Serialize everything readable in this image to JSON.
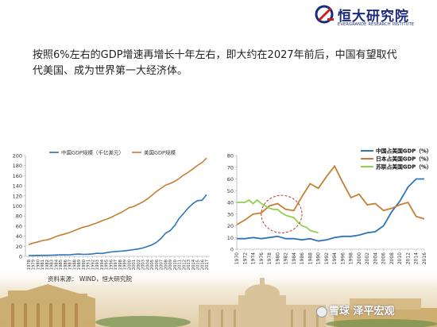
{
  "header": {
    "logo_name": "恒大研究院",
    "logo_subtitle": "EVERGRANDE RESEARCH INSTITUTE",
    "logo_color": "#1b2a7a",
    "logo_accent": "#c8201e"
  },
  "headline": "按照6%左右的GDP增速再增长十年左右，即大约在2027年前后，中国有望取代代美国、成为世界第一大经济体。",
  "footer": {
    "source": "资料来源：   WIND，恒大研究院",
    "watermark": "雪球 泽平宏观"
  },
  "chart_data": [
    {
      "type": "line",
      "xlabel": "",
      "ylabel": "",
      "ylim": [
        0,
        200
      ],
      "yticks": [
        0,
        20,
        40,
        60,
        80,
        100,
        120,
        140,
        160,
        180,
        200
      ],
      "x": [
        1978,
        1979,
        1980,
        1981,
        1982,
        1983,
        1984,
        1985,
        1986,
        1987,
        1988,
        1989,
        1990,
        1991,
        1992,
        1993,
        1994,
        1995,
        1996,
        1997,
        1998,
        1999,
        2000,
        2001,
        2002,
        2003,
        2004,
        2005,
        2006,
        2007,
        2008,
        2009,
        2010,
        2011,
        2012,
        2013,
        2014,
        2015,
        2016,
        2017
      ],
      "legend_position": "top",
      "grid": false,
      "series": [
        {
          "name": "中国GDP规模（千亿美元）",
          "color": "#2e75b6",
          "values": [
            1.5,
            1.8,
            1.9,
            2.0,
            2.0,
            2.3,
            2.6,
            3.1,
            3.0,
            3.2,
            4.1,
            4.6,
            4.0,
            4.2,
            4.9,
            6.1,
            5.6,
            7.3,
            8.6,
            9.6,
            10.3,
            10.9,
            12.1,
            13.4,
            14.7,
            16.6,
            19.6,
            22.9,
            27.5,
            35.5,
            45.9,
            51.0,
            60.9,
            75.5,
            85.7,
            96.1,
            104.8,
            110.6,
            111.4,
            122.4
          ]
        },
        {
          "name": "美国GDP规模",
          "color": "#c47f32",
          "values": [
            23.5,
            26.3,
            28.6,
            31.3,
            32.6,
            35.4,
            39.3,
            42.2,
            44.6,
            47.4,
            51.0,
            54.8,
            58.0,
            60.2,
            63.4,
            66.6,
            70.4,
            73.4,
            77.0,
            81.6,
            86.0,
            90.9,
            96.5,
            98.9,
            103.3,
            107.9,
            113.8,
            121.0,
            128.6,
            134.8,
            141.2,
            144.5,
            148.8,
            154.5,
            161.6,
            166.9,
            173.5,
            180.3,
            186.2,
            194.9
          ]
        }
      ]
    },
    {
      "type": "line",
      "xlabel": "",
      "ylabel": "",
      "ylim": [
        0,
        80
      ],
      "yticks": [
        0,
        10,
        20,
        30,
        40,
        50,
        60,
        70,
        80
      ],
      "xticks": [
        1970,
        1972,
        1974,
        1976,
        1978,
        1980,
        1982,
        1984,
        1986,
        1988,
        1990,
        1992,
        1994,
        1996,
        1998,
        2000,
        2002,
        2004,
        2006,
        2008,
        2010,
        2012,
        2014,
        2016
      ],
      "xlim": [
        1970,
        2016
      ],
      "legend_position": "top-right",
      "grid": false,
      "annotation": "dashed-ellipse",
      "series": [
        {
          "name": "中国占美国GDP（%）",
          "color": "#2e75b6",
          "x": [
            1970,
            1972,
            1974,
            1976,
            1978,
            1980,
            1982,
            1984,
            1986,
            1988,
            1990,
            1992,
            1994,
            1996,
            1998,
            2000,
            2002,
            2004,
            2006,
            2008,
            2010,
            2012,
            2014,
            2016
          ],
          "values": [
            9,
            9,
            10,
            9,
            10,
            11,
            9,
            9,
            8,
            9,
            7,
            8,
            10,
            11,
            11,
            12,
            14,
            15,
            20,
            32,
            41,
            53,
            60,
            60
          ]
        },
        {
          "name": "日本占美国GDP（%）",
          "color": "#c47f32",
          "x": [
            1970,
            1972,
            1974,
            1976,
            1978,
            1980,
            1982,
            1984,
            1986,
            1988,
            1990,
            1992,
            1994,
            1996,
            1998,
            2000,
            2002,
            2004,
            2006,
            2008,
            2010,
            2012,
            2014,
            2016
          ],
          "values": [
            21,
            25,
            30,
            31,
            37,
            39,
            34,
            33,
            45,
            56,
            52,
            62,
            71,
            57,
            44,
            47,
            38,
            39,
            33,
            35,
            38,
            40,
            28,
            26
          ]
        },
        {
          "name": "苏联占美国GDP（%）",
          "color": "#92d050",
          "x": [
            1970,
            1972,
            1973,
            1974,
            1975,
            1976,
            1977,
            1978,
            1979,
            1980,
            1981,
            1982,
            1983,
            1984,
            1985,
            1986,
            1987,
            1988,
            1989,
            1990
          ],
          "values": [
            40,
            40,
            42,
            39,
            42,
            39,
            37,
            35,
            34,
            34,
            31,
            29,
            28,
            27,
            23,
            20,
            19,
            16,
            15,
            14
          ]
        }
      ]
    }
  ]
}
